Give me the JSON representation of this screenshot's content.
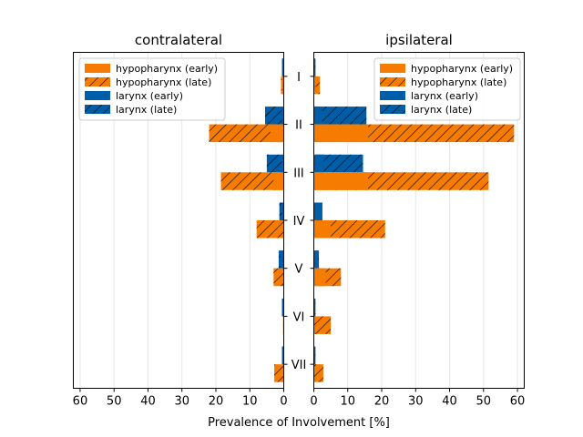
{
  "chart_data": {
    "type": "bar",
    "orientation": "horizontal",
    "xlabel": "Prevalence of Involvement [%]",
    "categories": [
      "I",
      "II",
      "III",
      "IV",
      "V",
      "VI",
      "VII"
    ],
    "xticks": [
      0,
      10,
      20,
      30,
      40,
      50,
      60
    ],
    "xlim": [
      0,
      62
    ],
    "grid": "x",
    "colors": {
      "hypopharynx": "#f57c00",
      "larynx": "#005ea8"
    },
    "panels": [
      {
        "title": "contralateral",
        "direction": "reversed",
        "legend_position": "top-left",
        "series": [
          {
            "name": "hypopharynx (early)",
            "color": "#f57c00",
            "hatch": false,
            "values": [
              0.5,
              4,
              3,
              0,
              0,
              0,
              0
            ]
          },
          {
            "name": "hypopharynx (late)",
            "color": "#f57c00",
            "hatch": true,
            "values": [
              0.8,
              22,
              18.5,
              8,
              3,
              0.2,
              2.8
            ]
          },
          {
            "name": "larynx (early)",
            "color": "#005ea8",
            "hatch": false,
            "values": [
              0.5,
              0.5,
              0.5,
              0.5,
              1,
              0.5,
              0.5
            ]
          },
          {
            "name": "larynx (late)",
            "color": "#005ea8",
            "hatch": true,
            "values": [
              0.5,
              5.5,
              5,
              1.3,
              1.5,
              0.5,
              0.5
            ]
          }
        ]
      },
      {
        "title": "ipsilateral",
        "direction": "normal",
        "legend_position": "top-right",
        "series": [
          {
            "name": "hypopharynx (early)",
            "color": "#f57c00",
            "hatch": false,
            "values": [
              0.5,
              16,
              16,
              5,
              3.5,
              0,
              0
            ]
          },
          {
            "name": "hypopharynx (late)",
            "color": "#f57c00",
            "hatch": true,
            "values": [
              1.8,
              59,
              51.5,
              21,
              8,
              5,
              2.8
            ]
          },
          {
            "name": "larynx (early)",
            "color": "#005ea8",
            "hatch": false,
            "values": [
              0.3,
              2.5,
              3,
              2.5,
              1.2,
              0.3,
              0.3
            ]
          },
          {
            "name": "larynx (late)",
            "color": "#005ea8",
            "hatch": true,
            "values": [
              0.5,
              15.5,
              14.5,
              2.5,
              1.5,
              0.5,
              0.5
            ]
          }
        ]
      }
    ]
  }
}
